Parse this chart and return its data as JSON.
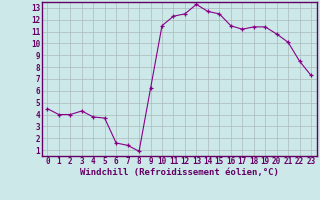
{
  "x": [
    0,
    1,
    2,
    3,
    4,
    5,
    6,
    7,
    8,
    9,
    10,
    11,
    12,
    13,
    14,
    15,
    16,
    17,
    18,
    19,
    20,
    21,
    22,
    23
  ],
  "y": [
    4.5,
    4.0,
    4.0,
    4.3,
    3.8,
    3.7,
    1.6,
    1.4,
    0.9,
    6.2,
    11.5,
    12.3,
    12.5,
    13.3,
    12.7,
    12.5,
    11.5,
    11.2,
    11.4,
    11.4,
    10.8,
    10.1,
    8.5,
    7.3
  ],
  "line_color": "#880088",
  "marker": "+",
  "marker_color": "#880088",
  "bg_color": "#cce8e8",
  "grid_color": "#aabbbb",
  "xlabel": "Windchill (Refroidissement éolien,°C)",
  "xlabel_color": "#660066",
  "xlabel_fontsize": 6.5,
  "xtick_labels": [
    "0",
    "1",
    "2",
    "3",
    "4",
    "5",
    "6",
    "7",
    "8",
    "9",
    "10",
    "11",
    "12",
    "13",
    "14",
    "15",
    "16",
    "17",
    "18",
    "19",
    "20",
    "21",
    "22",
    "23"
  ],
  "ytick_labels": [
    "1",
    "2",
    "3",
    "4",
    "5",
    "6",
    "7",
    "8",
    "9",
    "10",
    "11",
    "12",
    "13"
  ],
  "ylim": [
    0.5,
    13.5
  ],
  "xlim": [
    -0.5,
    23.5
  ],
  "tick_color": "#660066",
  "tick_fontsize": 5.5,
  "border_color": "#660066",
  "spine_color": "#660066"
}
